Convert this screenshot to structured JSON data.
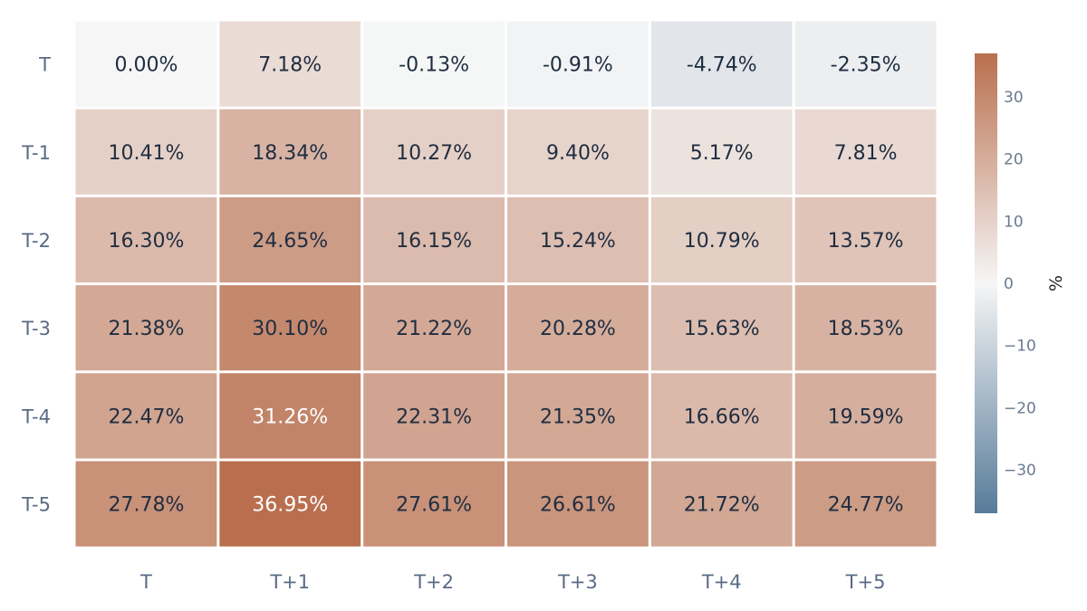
{
  "chart_data": {
    "type": "heatmap",
    "title": "",
    "xlabel": "",
    "ylabel": "",
    "x_categories": [
      "T",
      "T+1",
      "T+2",
      "T+3",
      "T+4",
      "T+5"
    ],
    "y_categories": [
      "T",
      "T-1",
      "T-2",
      "T-3",
      "T-4",
      "T-5"
    ],
    "values": [
      [
        0.0,
        7.18,
        -0.13,
        -0.91,
        -4.74,
        -2.35
      ],
      [
        10.41,
        18.34,
        10.27,
        9.4,
        5.17,
        7.81
      ],
      [
        16.3,
        24.65,
        16.15,
        15.24,
        10.79,
        13.57
      ],
      [
        21.38,
        30.1,
        21.22,
        20.28,
        15.63,
        18.53
      ],
      [
        22.47,
        31.26,
        22.31,
        21.35,
        16.66,
        19.59
      ],
      [
        27.78,
        36.95,
        27.61,
        26.61,
        21.72,
        24.77
      ]
    ],
    "cell_labels": [
      [
        "0.00%",
        "7.18%",
        "-0.13%",
        "-0.91%",
        "-4.74%",
        "-2.35%"
      ],
      [
        "10.41%",
        "18.34%",
        "10.27%",
        "9.40%",
        "5.17%",
        "7.81%"
      ],
      [
        "16.30%",
        "24.65%",
        "16.15%",
        "15.24%",
        "10.79%",
        "13.57%"
      ],
      [
        "21.38%",
        "30.10%",
        "21.22%",
        "20.28%",
        "15.63%",
        "18.53%"
      ],
      [
        "22.47%",
        "31.26%",
        "22.31%",
        "21.35%",
        "16.66%",
        "19.59%"
      ],
      [
        "27.78%",
        "36.95%",
        "27.61%",
        "26.61%",
        "21.72%",
        "24.77%"
      ]
    ],
    "colorscale": {
      "range": [
        -36.95,
        36.95
      ],
      "negative_color": "#577b99",
      "mid_color": "#f6f6f6",
      "positive_color": "#b96f4e",
      "title": "%",
      "ticks": [
        30,
        20,
        10,
        0,
        -10,
        -20,
        -30
      ],
      "tick_labels": [
        "30",
        "20",
        "10",
        "0",
        "−10",
        "−20",
        "−30"
      ]
    },
    "grid": false,
    "legend": "colorbar-right"
  }
}
